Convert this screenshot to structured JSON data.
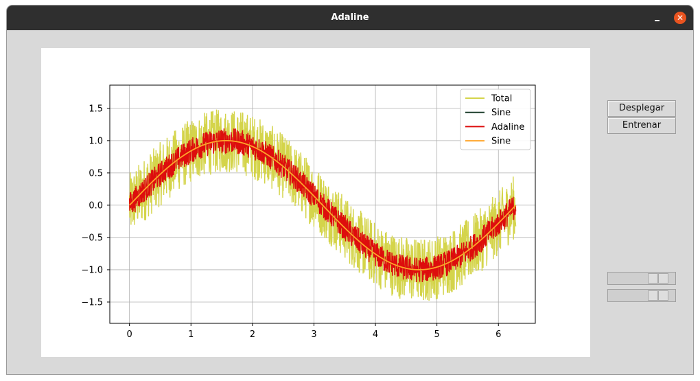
{
  "window": {
    "title": "Adaline",
    "minimize_icon": "minimize-icon",
    "close_icon": "close-icon",
    "close_glyph": "✕",
    "accent_color": "#e95420"
  },
  "buttons": {
    "display_label": "Desplegar",
    "train_label": "Entrenar"
  },
  "sliders": [
    {
      "name": "slider-1",
      "value_fraction": 0.85
    },
    {
      "name": "slider-2",
      "value_fraction": 0.85
    }
  ],
  "chart_data": {
    "type": "line",
    "title": "",
    "xlabel": "",
    "ylabel": "",
    "xlim": [
      -0.32,
      6.6
    ],
    "ylim": [
      -1.83,
      1.86
    ],
    "x_ticks": [
      0,
      1,
      2,
      3,
      4,
      5,
      6
    ],
    "y_ticks": [
      1.5,
      1.0,
      0.5,
      0.0,
      -0.5,
      -1.0,
      -1.5
    ],
    "x_tick_labels": [
      "0",
      "1",
      "2",
      "3",
      "4",
      "5",
      "6"
    ],
    "y_tick_labels": [
      "1.5",
      "1.0",
      "0.5",
      "0.0",
      "−0.5",
      "−1.0",
      "−1.5"
    ],
    "grid": true,
    "legend_position": "top-right",
    "x_range": [
      0,
      6.283
    ],
    "series": [
      {
        "name": "Total",
        "color": "#d4d44a",
        "noise_amplitude": 0.5
      },
      {
        "name": "Sine",
        "color": "#1b3d2a",
        "noise_amplitude": 0.0
      },
      {
        "name": "Adaline",
        "color": "#dd0d0d",
        "noise_amplitude": 0.2
      },
      {
        "name": "Sine",
        "color": "#ffa52a",
        "noise_amplitude": 0.0
      }
    ],
    "underlying_function": "sin(x)"
  }
}
